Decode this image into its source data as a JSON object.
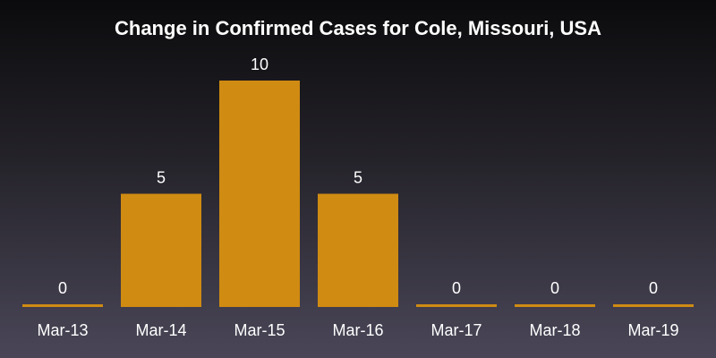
{
  "chart_data": {
    "type": "bar",
    "title": "Change in Confirmed Cases for Cole, Missouri, USA",
    "xlabel": "",
    "ylabel": "",
    "categories": [
      "Mar-13",
      "Mar-14",
      "Mar-15",
      "Mar-16",
      "Mar-17",
      "Mar-18",
      "Mar-19"
    ],
    "values": [
      0,
      5,
      10,
      5,
      0,
      0,
      0
    ],
    "ylim": [
      0,
      10
    ],
    "grid": false,
    "legend": "none",
    "data_labels": true
  },
  "colors": {
    "bar": "#cf8b12",
    "text": "#ffffff",
    "background_top": "#0b0b0d",
    "background_bottom": "#4a4658"
  }
}
